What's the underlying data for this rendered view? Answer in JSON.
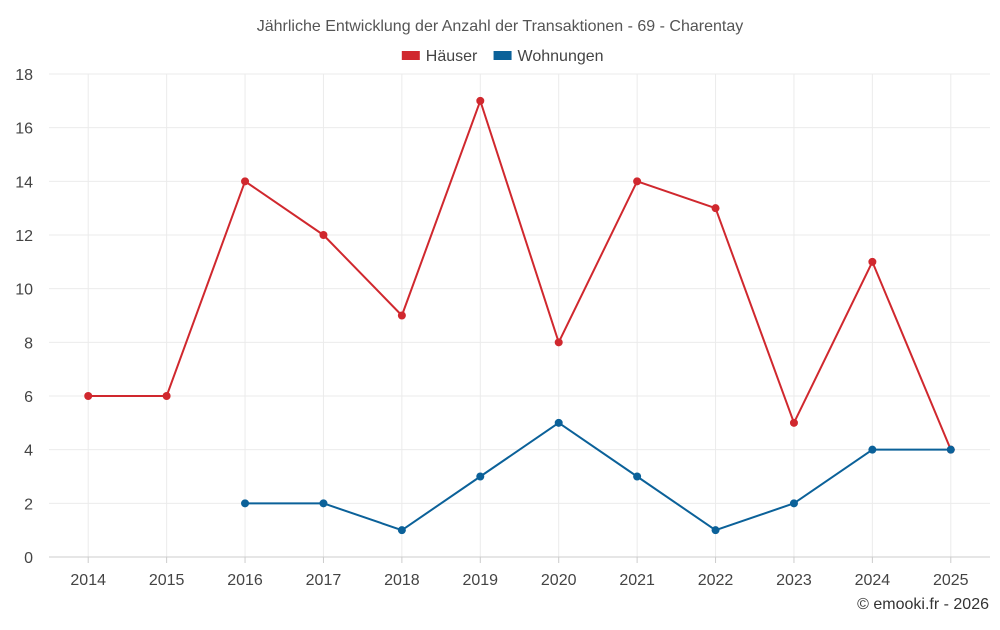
{
  "chart_data": {
    "type": "line",
    "title": "Jährliche Entwicklung der Anzahl der Transaktionen - 69 - Charentay",
    "categories": [
      "2014",
      "2015",
      "2016",
      "2017",
      "2018",
      "2019",
      "2020",
      "2021",
      "2022",
      "2023",
      "2024",
      "2025"
    ],
    "series": [
      {
        "name": "Häuser",
        "color": "#d0282e",
        "values": [
          6,
          6,
          14,
          12,
          9,
          17,
          8,
          14,
          13,
          5,
          11,
          4
        ]
      },
      {
        "name": "Wohnungen",
        "color": "#0b6199",
        "values": [
          null,
          null,
          2,
          2,
          1,
          3,
          5,
          3,
          1,
          2,
          4,
          4
        ]
      }
    ],
    "ylim": [
      0,
      18
    ],
    "yticks": [
      0,
      2,
      4,
      6,
      8,
      10,
      12,
      14,
      16,
      18
    ],
    "grid": true,
    "legend_position": "top-center",
    "xlabel": "",
    "ylabel": ""
  },
  "credit": "© emooki.fr - 2026"
}
